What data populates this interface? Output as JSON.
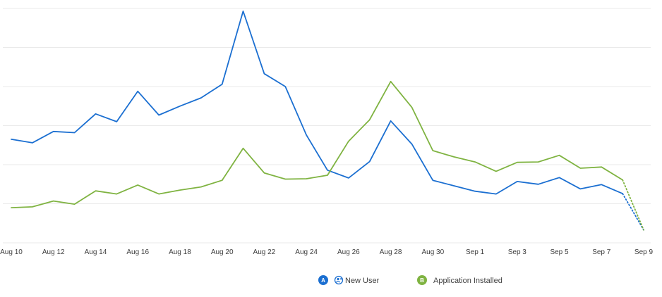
{
  "chart_data": {
    "type": "line",
    "title": "",
    "xlabel": "",
    "ylabel": "",
    "grid": true,
    "legend_position": "bottom-center",
    "x": [
      "Aug 10",
      "Aug 11",
      "Aug 12",
      "Aug 13",
      "Aug 14",
      "Aug 15",
      "Aug 16",
      "Aug 17",
      "Aug 18",
      "Aug 19",
      "Aug 20",
      "Aug 21",
      "Aug 22",
      "Aug 23",
      "Aug 24",
      "Aug 25",
      "Aug 26",
      "Aug 27",
      "Aug 28",
      "Aug 29",
      "Aug 30",
      "Aug 31",
      "Sep 1",
      "Sep 2",
      "Sep 3",
      "Sep 4",
      "Sep 5",
      "Sep 6",
      "Sep 7",
      "Sep 8",
      "Sep 9"
    ],
    "x_tick_labels": [
      "Aug 10",
      "Aug 12",
      "Aug 14",
      "Aug 16",
      "Aug 18",
      "Aug 20",
      "Aug 22",
      "Aug 24",
      "Aug 26",
      "Aug 28",
      "Aug 30",
      "Sep 1",
      "Sep 3",
      "Sep 5",
      "Sep 7",
      "Sep 9"
    ],
    "ylim": [
      0,
      60
    ],
    "gridlines": [
      0,
      10,
      20,
      30,
      40,
      50,
      60
    ],
    "incomplete_last_point": true,
    "series": [
      {
        "name": "New User",
        "badge": "A",
        "icon": "new-user-icon",
        "color": "#1b6fd1",
        "values": [
          26.5,
          25.6,
          28.5,
          28.2,
          33.0,
          31.0,
          38.8,
          32.7,
          35.0,
          37.1,
          40.6,
          59.3,
          43.3,
          40.0,
          27.6,
          18.6,
          16.6,
          20.8,
          31.2,
          25.3,
          16.0,
          14.6,
          13.2,
          12.5,
          15.7,
          15.0,
          16.7,
          13.8,
          14.9,
          12.6,
          3.3
        ]
      },
      {
        "name": "Application Installed",
        "badge": "B",
        "color": "#7fb341",
        "values": [
          9.0,
          9.2,
          10.7,
          9.9,
          13.3,
          12.5,
          14.8,
          12.5,
          13.5,
          14.3,
          16.0,
          24.2,
          17.9,
          16.3,
          16.4,
          17.3,
          26.0,
          31.5,
          41.3,
          34.7,
          23.6,
          22.0,
          20.7,
          18.3,
          20.6,
          20.7,
          22.4,
          19.1,
          19.4,
          16.1,
          3.3
        ]
      }
    ]
  }
}
